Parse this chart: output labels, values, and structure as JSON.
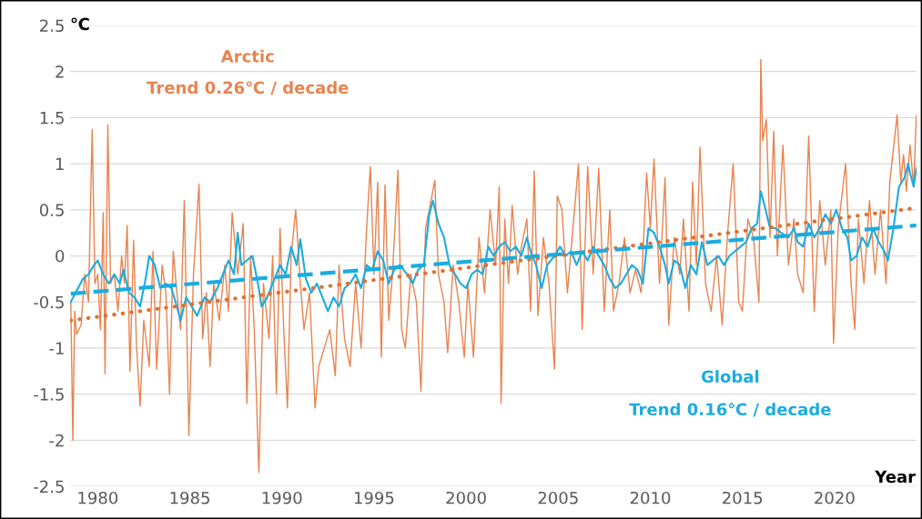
{
  "chart_data": {
    "type": "line",
    "xlabel": "Year",
    "ylabel": "℃",
    "xlim": [
      1978.5,
      2024.45
    ],
    "xticks": [
      1980,
      1985,
      1990,
      1995,
      2000,
      2005,
      2010,
      2015,
      2020
    ],
    "ylim": [
      -2.5,
      2.5
    ],
    "yticks": [
      -2.5,
      -2,
      -1.5,
      -1,
      -0.5,
      0,
      0.5,
      1,
      1.5,
      2,
      2.5
    ],
    "grid": "y",
    "legend": false,
    "marker": "none",
    "annotations": [
      "Trend 0.26℃ / decade",
      "Trend 0.16℃ / decade"
    ],
    "series": [
      {
        "name": "Arctic",
        "color": "#e8834e",
        "line_style": "solid",
        "x": [
          1978.54,
          1978.65,
          1978.75,
          1978.85,
          1979.1,
          1979.3,
          1979.5,
          1979.7,
          1979.85,
          1980.0,
          1980.15,
          1980.3,
          1980.4,
          1980.55,
          1980.7,
          1980.9,
          1981.1,
          1981.3,
          1981.45,
          1981.6,
          1981.75,
          1981.95,
          1982.1,
          1982.3,
          1982.5,
          1982.8,
          1983.0,
          1983.2,
          1983.5,
          1983.7,
          1983.9,
          1984.1,
          1984.3,
          1984.5,
          1984.7,
          1984.95,
          1985.2,
          1985.5,
          1985.7,
          1985.9,
          1986.1,
          1986.3,
          1986.6,
          1986.9,
          1987.1,
          1987.3,
          1987.6,
          1987.9,
          1988.1,
          1988.3,
          1988.5,
          1988.75,
          1989.0,
          1989.3,
          1989.5,
          1989.7,
          1989.9,
          1990.1,
          1990.3,
          1990.5,
          1990.75,
          1991.0,
          1991.2,
          1991.5,
          1991.8,
          1992.0,
          1992.3,
          1992.6,
          1992.9,
          1993.1,
          1993.4,
          1993.7,
          1994.0,
          1994.3,
          1994.6,
          1994.8,
          1995.0,
          1995.2,
          1995.4,
          1995.6,
          1995.8,
          1996.0,
          1996.3,
          1996.5,
          1996.7,
          1997.0,
          1997.3,
          1997.55,
          1997.8,
          1998.0,
          1998.3,
          1998.5,
          1998.8,
          1999.0,
          1999.3,
          1999.6,
          1999.9,
          2000.1,
          2000.4,
          2000.7,
          2001.0,
          2001.3,
          2001.6,
          2001.8,
          2001.9,
          2002.1,
          2002.3,
          2002.5,
          2002.8,
          2003.0,
          2003.3,
          2003.5,
          2003.7,
          2003.9,
          2004.2,
          2004.5,
          2004.8,
          2004.95,
          2005.2,
          2005.5,
          2005.8,
          2006.1,
          2006.3,
          2006.6,
          2006.9,
          2007.2,
          2007.5,
          2007.8,
          2008.0,
          2008.3,
          2008.6,
          2008.9,
          2009.2,
          2009.5,
          2009.8,
          2010.0,
          2010.2,
          2010.5,
          2010.8,
          2011.0,
          2011.3,
          2011.6,
          2011.8,
          2012.1,
          2012.3,
          2012.5,
          2012.7,
          2013.0,
          2013.3,
          2013.6,
          2013.9,
          2014.2,
          2014.5,
          2014.8,
          2015.0,
          2015.3,
          2015.6,
          2015.9,
          2016.0,
          2016.1,
          2016.3,
          2016.5,
          2016.7,
          2016.9,
          2017.2,
          2017.5,
          2017.8,
          2018.0,
          2018.3,
          2018.6,
          2018.9,
          2019.2,
          2019.5,
          2019.8,
          2019.95,
          2020.2,
          2020.6,
          2020.9,
          2021.1,
          2021.3,
          2021.6,
          2021.9,
          2022.2,
          2022.5,
          2022.8,
          2023.0,
          2023.4,
          2023.6,
          2023.75,
          2023.9,
          2024.1,
          2024.3,
          2024.44
        ],
        "values": [
          -0.5,
          -2.0,
          -0.6,
          -0.85,
          -0.75,
          -0.2,
          -0.5,
          1.37,
          -0.3,
          -0.2,
          -0.8,
          0.47,
          -1.28,
          1.42,
          -0.3,
          -0.2,
          -0.6,
          0.0,
          -0.3,
          0.33,
          -1.25,
          0.17,
          -0.95,
          -1.63,
          -0.7,
          -1.2,
          0.05,
          -1.23,
          -0.1,
          -0.4,
          -1.5,
          0.05,
          -0.4,
          -0.8,
          0.6,
          -1.95,
          -0.2,
          0.78,
          -0.9,
          -0.4,
          -1.2,
          -0.3,
          -0.7,
          -0.1,
          -0.6,
          0.47,
          -0.2,
          0.35,
          -1.6,
          0.0,
          -0.8,
          -2.35,
          -0.3,
          -0.9,
          0.0,
          -1.5,
          0.3,
          -0.8,
          -1.65,
          0.0,
          0.5,
          -0.3,
          -0.8,
          -0.4,
          -1.65,
          -1.2,
          -1.0,
          -0.8,
          -1.3,
          -0.1,
          -0.9,
          -1.2,
          -0.3,
          -1.0,
          0.3,
          0.97,
          -0.2,
          0.8,
          -1.1,
          0.77,
          -0.7,
          -0.2,
          0.93,
          -0.8,
          -1.0,
          -0.2,
          -0.5,
          -1.47,
          0.3,
          0.5,
          0.82,
          -0.2,
          -0.5,
          -1.05,
          -0.1,
          -0.5,
          -1.1,
          -0.3,
          -1.1,
          0.2,
          -0.4,
          0.5,
          -0.1,
          0.75,
          -1.6,
          0.4,
          -0.3,
          0.55,
          -0.2,
          0.1,
          0.4,
          -0.6,
          0.92,
          -0.65,
          0.2,
          -0.3,
          -1.23,
          0.65,
          0.5,
          -0.4,
          0.3,
          1.0,
          -0.8,
          0.97,
          -0.2,
          0.95,
          -0.6,
          0.5,
          -0.6,
          -0.3,
          0.2,
          -0.4,
          -0.15,
          -0.4,
          0.9,
          0.3,
          1.05,
          -0.3,
          0.85,
          -0.75,
          0.2,
          -0.2,
          0.4,
          -0.6,
          0.8,
          -0.1,
          1.18,
          -0.3,
          -0.6,
          0.0,
          -0.75,
          0.25,
          1.0,
          -0.5,
          -0.6,
          0.4,
          0.2,
          -0.5,
          2.13,
          1.25,
          1.48,
          0.2,
          1.35,
          0.0,
          1.2,
          -0.1,
          0.4,
          -0.2,
          -0.4,
          1.3,
          -0.6,
          0.6,
          -0.1,
          0.5,
          -0.95,
          0.3,
          1.0,
          -0.3,
          -0.8,
          0.4,
          -0.3,
          0.6,
          -0.2,
          0.5,
          -0.3,
          0.8,
          1.53,
          0.8,
          1.1,
          0.7,
          1.2,
          0.75,
          1.52
        ]
      },
      {
        "name": "Global",
        "color": "#1aace0",
        "line_style": "solid",
        "x": [
          1978.54,
          1978.8,
          1979.2,
          1979.5,
          1979.8,
          1980.0,
          1980.3,
          1980.6,
          1980.9,
          1981.2,
          1981.4,
          1981.7,
          1982.0,
          1982.3,
          1982.6,
          1982.8,
          1983.1,
          1983.4,
          1983.7,
          1984.0,
          1984.3,
          1984.5,
          1984.8,
          1985.1,
          1985.4,
          1985.8,
          1986.1,
          1986.5,
          1986.8,
          1987.1,
          1987.4,
          1987.6,
          1987.8,
          1988.1,
          1988.4,
          1988.7,
          1988.9,
          1989.2,
          1989.6,
          1989.9,
          1990.2,
          1990.5,
          1990.8,
          1991.0,
          1991.3,
          1991.6,
          1991.9,
          1992.2,
          1992.5,
          1992.8,
          1993.1,
          1993.4,
          1993.7,
          1994.0,
          1994.3,
          1994.6,
          1994.9,
          1995.2,
          1995.5,
          1995.8,
          1996.1,
          1996.4,
          1996.8,
          1997.1,
          1997.4,
          1997.7,
          1998.0,
          1998.2,
          1998.5,
          1998.8,
          1999.1,
          1999.4,
          1999.7,
          2000.0,
          2000.3,
          2000.6,
          2000.9,
          2001.2,
          2001.5,
          2001.8,
          2002.1,
          2002.4,
          2002.7,
          2003.0,
          2003.3,
          2003.5,
          2003.8,
          2004.1,
          2004.4,
          2004.8,
          2005.1,
          2005.4,
          2005.7,
          2006.0,
          2006.3,
          2006.6,
          2006.9,
          2007.2,
          2007.5,
          2007.8,
          2008.1,
          2008.4,
          2008.7,
          2009.0,
          2009.3,
          2009.6,
          2009.9,
          2010.2,
          2010.5,
          2010.8,
          2011.0,
          2011.3,
          2011.6,
          2011.9,
          2012.2,
          2012.5,
          2012.8,
          2013.1,
          2013.4,
          2013.7,
          2014.0,
          2014.3,
          2014.6,
          2014.9,
          2015.2,
          2015.5,
          2015.8,
          2016.0,
          2016.2,
          2016.5,
          2016.8,
          2017.1,
          2017.5,
          2017.8,
          2018.0,
          2018.3,
          2018.6,
          2018.9,
          2019.2,
          2019.5,
          2019.8,
          2020.1,
          2020.4,
          2020.7,
          2020.9,
          2021.2,
          2021.5,
          2021.8,
          2022.1,
          2022.4,
          2022.7,
          2022.9,
          2023.2,
          2023.5,
          2023.8,
          2024.0,
          2024.1,
          2024.3,
          2024.44
        ],
        "values": [
          -0.5,
          -0.4,
          -0.25,
          -0.2,
          -0.1,
          -0.05,
          -0.2,
          -0.3,
          -0.2,
          -0.3,
          -0.15,
          -0.4,
          -0.45,
          -0.55,
          -0.25,
          0.0,
          -0.1,
          -0.35,
          -0.3,
          -0.35,
          -0.55,
          -0.7,
          -0.45,
          -0.55,
          -0.65,
          -0.45,
          -0.5,
          -0.35,
          -0.2,
          -0.05,
          -0.2,
          0.25,
          -0.1,
          -0.05,
          0.0,
          -0.3,
          -0.55,
          -0.45,
          -0.25,
          -0.1,
          -0.2,
          0.1,
          -0.1,
          0.18,
          -0.25,
          -0.4,
          -0.3,
          -0.45,
          -0.6,
          -0.45,
          -0.55,
          -0.35,
          -0.3,
          -0.2,
          -0.35,
          -0.1,
          -0.15,
          0.05,
          -0.05,
          -0.3,
          -0.15,
          -0.1,
          -0.2,
          -0.3,
          -0.15,
          -0.1,
          0.45,
          0.6,
          0.35,
          0.2,
          -0.1,
          -0.2,
          -0.3,
          -0.35,
          -0.2,
          -0.15,
          -0.2,
          0.1,
          0.0,
          0.1,
          0.15,
          0.05,
          0.1,
          0.0,
          0.2,
          0.05,
          -0.1,
          -0.35,
          -0.1,
          0.0,
          0.1,
          0.0,
          0.05,
          -0.1,
          0.05,
          -0.05,
          0.1,
          0.0,
          -0.1,
          -0.25,
          -0.35,
          -0.3,
          -0.2,
          -0.1,
          -0.15,
          -0.3,
          0.3,
          0.25,
          0.1,
          -0.1,
          -0.3,
          -0.05,
          -0.1,
          -0.35,
          -0.1,
          -0.2,
          0.15,
          -0.1,
          -0.05,
          0.0,
          -0.1,
          0.0,
          0.05,
          0.1,
          0.15,
          0.3,
          0.35,
          0.7,
          0.55,
          0.3,
          0.3,
          0.25,
          0.2,
          0.3,
          0.15,
          0.1,
          0.35,
          0.2,
          0.3,
          0.45,
          0.35,
          0.5,
          0.3,
          0.2,
          -0.05,
          0.0,
          0.2,
          0.1,
          0.3,
          0.15,
          0.05,
          -0.05,
          0.3,
          0.75,
          0.85,
          1.0,
          0.9,
          0.75,
          0.95
        ]
      },
      {
        "color": "#e07030",
        "line_style": "dotted",
        "x": [
          1978.54,
          2024.44
        ],
        "values": [
          -0.7,
          0.52
        ]
      },
      {
        "color": "#1aace0",
        "line_style": "dashed",
        "x": [
          1978.54,
          2024.44
        ],
        "values": [
          -0.41,
          0.33
        ]
      }
    ]
  }
}
